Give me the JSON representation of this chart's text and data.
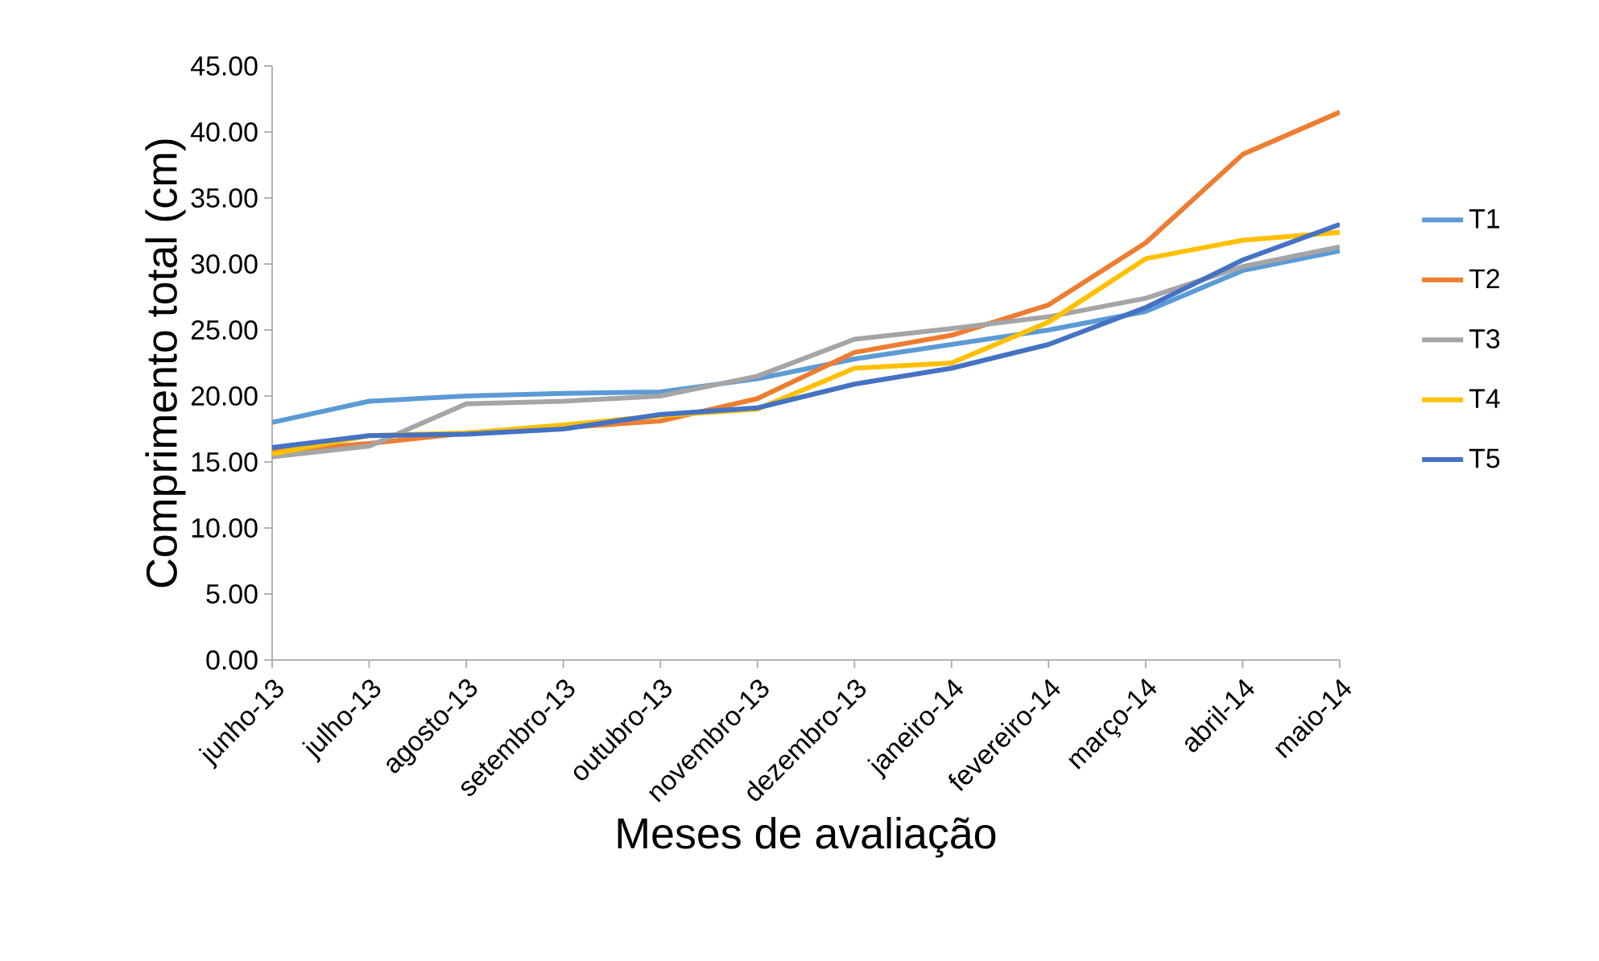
{
  "chart_data": {
    "type": "line",
    "xlabel": "Meses de avaliação",
    "ylabel": "Comprimento total (cm)",
    "categories": [
      "junho-13",
      "julho-13",
      "agosto-13",
      "setembro-13",
      "outubro-13",
      "novembro-13",
      "dezembro-13",
      "janeiro-14",
      "fevereiro-14",
      "março-14",
      "abril-14",
      "maio-14"
    ],
    "ylim": [
      0,
      45
    ],
    "yticks": [
      {
        "value": 0,
        "label": "0.00"
      },
      {
        "value": 5,
        "label": "5.00"
      },
      {
        "value": 10,
        "label": "10.00"
      },
      {
        "value": 15,
        "label": "15.00"
      },
      {
        "value": 20,
        "label": "20.00"
      },
      {
        "value": 25,
        "label": "25.00"
      },
      {
        "value": 30,
        "label": "30.00"
      },
      {
        "value": 35,
        "label": "35.00"
      },
      {
        "value": 40,
        "label": "40.00"
      },
      {
        "value": 45,
        "label": "45.00"
      }
    ],
    "series": [
      {
        "name": "T1",
        "color": "#5b9bd5",
        "values": [
          18.0,
          19.6,
          20.0,
          20.2,
          20.3,
          21.3,
          22.8,
          23.9,
          25.0,
          26.4,
          29.5,
          31.0
        ]
      },
      {
        "name": "T2",
        "color": "#ed7d31",
        "values": [
          15.8,
          16.4,
          17.2,
          17.6,
          18.1,
          19.8,
          23.3,
          24.6,
          26.9,
          31.6,
          38.3,
          41.5
        ]
      },
      {
        "name": "T3",
        "color": "#a5a5a5",
        "values": [
          15.4,
          16.2,
          19.4,
          19.6,
          20.0,
          21.5,
          24.3,
          25.1,
          26.0,
          27.4,
          29.8,
          31.3
        ]
      },
      {
        "name": "T4",
        "color": "#ffc000",
        "values": [
          15.6,
          17.0,
          17.2,
          17.8,
          18.5,
          19.0,
          22.1,
          22.5,
          25.6,
          30.4,
          31.8,
          32.4
        ]
      },
      {
        "name": "T5",
        "color": "#4472c4",
        "values": [
          16.1,
          17.0,
          17.1,
          17.5,
          18.6,
          19.1,
          20.9,
          22.1,
          23.9,
          26.7,
          30.3,
          33.0
        ]
      }
    ],
    "legend": "right",
    "marker": "none",
    "line_style": "solid",
    "grid": false
  }
}
